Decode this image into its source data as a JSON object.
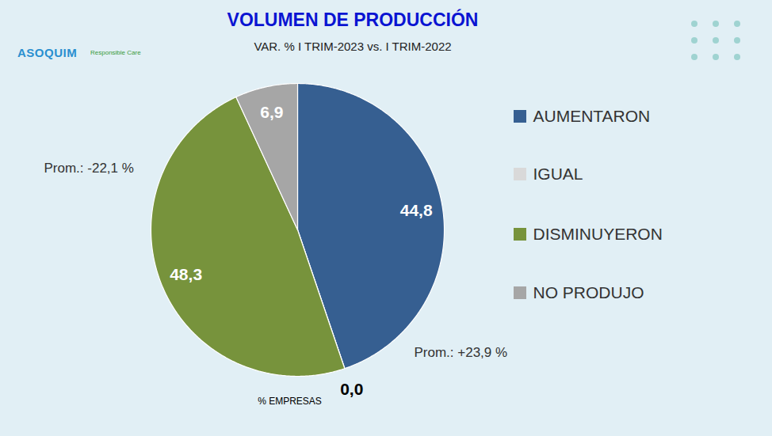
{
  "chart_data": {
    "type": "pie",
    "title": "VOLUMEN DE PRODUCCIÓN",
    "subtitle": "VAR. % I TRIM-2023 vs. I TRIM-2022",
    "categories": [
      "AUMENTARON",
      "IGUAL",
      "DISMINUYERON",
      "NO PRODUJO"
    ],
    "values": [
      44.8,
      0.0,
      48.3,
      6.9
    ],
    "value_labels": [
      "44,8",
      "0,0",
      "48,3",
      "6,9"
    ],
    "colors": [
      "#365f91",
      "#d9d9d9",
      "#77933c",
      "#a6a6a6"
    ],
    "data_labels": true,
    "legend": "right",
    "tick_labels": false,
    "caption": "% EMPRESAS",
    "annotations": [
      {
        "text": "Prom.: +23,9 %",
        "category": "AUMENTARON"
      },
      {
        "text": "Prom.: -22,1 %",
        "category": "DISMINUYERON"
      }
    ],
    "logo_texts": [
      "ASOQUIM",
      "Responsible Care"
    ]
  }
}
